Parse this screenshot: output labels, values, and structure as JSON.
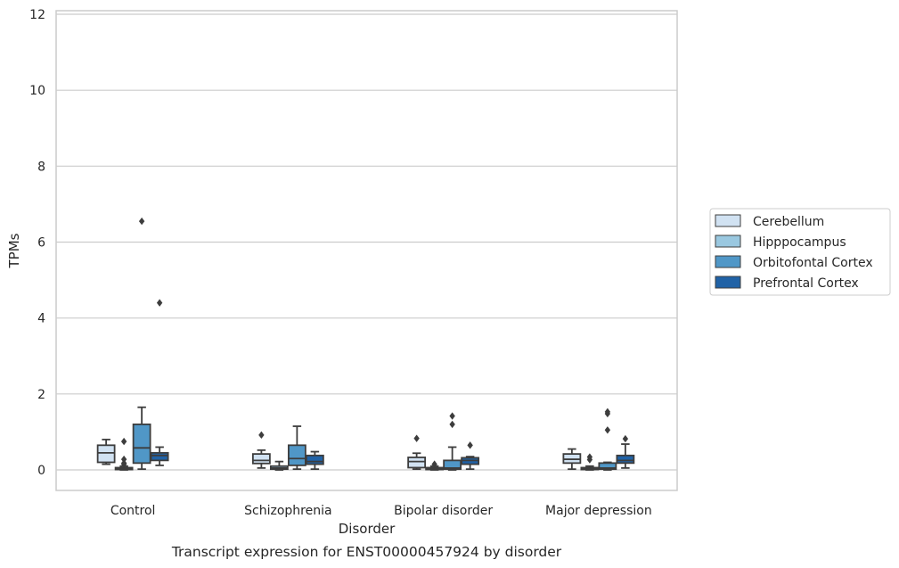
{
  "caption": "Transcript expression for ENST00000457924 by disorder",
  "chart_data": {
    "type": "box",
    "xlabel": "Disorder",
    "ylabel": "TPMs",
    "ylim": [
      -0.55,
      12.1
    ],
    "yticks": [
      0,
      2,
      4,
      6,
      8,
      10,
      12
    ],
    "grid": "horizontal",
    "legend_position": "right",
    "categories": [
      "Control",
      "Schizophrenia",
      "Bipolar disorder",
      "Major depression"
    ],
    "series": [
      {
        "name": "Cerebellum",
        "color": "#d1e2f2",
        "boxes": [
          {
            "whislo": 0.15,
            "q1": 0.2,
            "med": 0.45,
            "q3": 0.65,
            "whishi": 0.8,
            "fliers": []
          },
          {
            "whislo": 0.05,
            "q1": 0.17,
            "med": 0.25,
            "q3": 0.42,
            "whishi": 0.52,
            "fliers": [
              0.92
            ]
          },
          {
            "whislo": 0.02,
            "q1": 0.06,
            "med": 0.22,
            "q3": 0.33,
            "whishi": 0.44,
            "fliers": [
              0.83
            ]
          },
          {
            "whislo": 0.02,
            "q1": 0.18,
            "med": 0.28,
            "q3": 0.42,
            "whishi": 0.55,
            "fliers": []
          }
        ]
      },
      {
        "name": "Hipppocampus",
        "color": "#9ac8e0",
        "boxes": [
          {
            "whislo": 0.0,
            "q1": 0.01,
            "med": 0.03,
            "q3": 0.06,
            "whishi": 0.1,
            "fliers": [
              0.15,
              0.18,
              0.28,
              0.75
            ]
          },
          {
            "whislo": 0.0,
            "q1": 0.02,
            "med": 0.05,
            "q3": 0.1,
            "whishi": 0.22,
            "fliers": []
          },
          {
            "whislo": 0.0,
            "q1": 0.01,
            "med": 0.03,
            "q3": 0.06,
            "whishi": 0.1,
            "fliers": [
              0.15
            ]
          },
          {
            "whislo": 0.0,
            "q1": 0.01,
            "med": 0.03,
            "q3": 0.06,
            "whishi": 0.1,
            "fliers": [
              0.27,
              0.34
            ]
          }
        ]
      },
      {
        "name": "Orbitofontal Cortex",
        "color": "#5097c7",
        "boxes": [
          {
            "whislo": 0.02,
            "q1": 0.18,
            "med": 0.58,
            "q3": 1.2,
            "whishi": 1.65,
            "fliers": [
              6.55
            ]
          },
          {
            "whislo": 0.02,
            "q1": 0.12,
            "med": 0.3,
            "q3": 0.65,
            "whishi": 1.15,
            "fliers": []
          },
          {
            "whislo": 0.0,
            "q1": 0.02,
            "med": 0.05,
            "q3": 0.25,
            "whishi": 0.6,
            "fliers": [
              1.2,
              1.42
            ]
          },
          {
            "whislo": 0.0,
            "q1": 0.02,
            "med": 0.05,
            "q3": 0.18,
            "whishi": 0.2,
            "fliers": [
              1.05,
              1.48,
              1.53
            ]
          }
        ]
      },
      {
        "name": "Prefrontal Cortex",
        "color": "#2062a6",
        "boxes": [
          {
            "whislo": 0.12,
            "q1": 0.25,
            "med": 0.38,
            "q3": 0.45,
            "whishi": 0.6,
            "fliers": [
              4.4
            ]
          },
          {
            "whislo": 0.02,
            "q1": 0.15,
            "med": 0.22,
            "q3": 0.38,
            "whishi": 0.48,
            "fliers": []
          },
          {
            "whislo": 0.02,
            "q1": 0.15,
            "med": 0.25,
            "q3": 0.32,
            "whishi": 0.35,
            "fliers": [
              0.65
            ]
          },
          {
            "whislo": 0.05,
            "q1": 0.18,
            "med": 0.25,
            "q3": 0.38,
            "whishi": 0.68,
            "fliers": [
              0.82
            ]
          }
        ]
      }
    ]
  }
}
